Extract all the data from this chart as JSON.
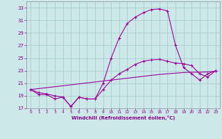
{
  "xlabel": "Windchill (Refroidissement éolien,°C)",
  "bg_color": "#cce8e8",
  "grid_color": "#aacccc",
  "line_color": "#990099",
  "xlim": [
    -0.5,
    23.5
  ],
  "ylim": [
    17,
    34
  ],
  "yticks": [
    17,
    19,
    21,
    23,
    25,
    27,
    29,
    31,
    33
  ],
  "xticks": [
    0,
    1,
    2,
    3,
    4,
    5,
    6,
    7,
    8,
    9,
    10,
    11,
    12,
    13,
    14,
    15,
    16,
    17,
    18,
    19,
    20,
    21,
    22,
    23
  ],
  "y_high": [
    20.0,
    19.2,
    19.2,
    18.5,
    18.8,
    17.3,
    18.8,
    18.5,
    18.5,
    21.0,
    25.0,
    28.2,
    30.5,
    31.5,
    32.2,
    32.7,
    32.8,
    32.5,
    27.0,
    23.5,
    22.5,
    21.5,
    22.5,
    23.0
  ],
  "y_mid": [
    20.0,
    19.5,
    19.3,
    19.0,
    18.8,
    17.3,
    18.8,
    18.5,
    18.5,
    20.0,
    21.5,
    22.5,
    23.2,
    24.0,
    24.5,
    24.7,
    24.8,
    24.5,
    24.2,
    24.1,
    23.8,
    22.5,
    22.0,
    23.0
  ],
  "y_diag": [
    20.0,
    20.15,
    20.3,
    20.45,
    20.6,
    20.75,
    20.9,
    21.05,
    21.2,
    21.35,
    21.5,
    21.65,
    21.8,
    21.95,
    22.1,
    22.25,
    22.4,
    22.5,
    22.6,
    22.7,
    22.75,
    22.75,
    22.8,
    22.9
  ]
}
